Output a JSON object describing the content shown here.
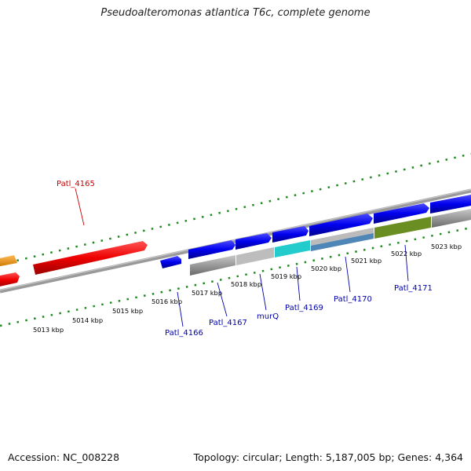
{
  "title": "Pseudoalteromonas atlantica T6c, complete genome",
  "footer": {
    "accession": "Accession: NC_008228",
    "summary": "Topology: circular; Length: 5,187,005 bp; Genes: 4,364"
  },
  "colors": {
    "backbone": "#8a8a8a",
    "tick": "#1f8a1f",
    "gene_blue": "#0000ee",
    "gene_red": "#ee0000",
    "gene_orange": "#ff9900",
    "label_blue": "#0000aa",
    "label_red": "#cc0000"
  },
  "kbp_labels": [
    "5013 kbp",
    "5014 kbp",
    "5015 kbp",
    "5016 kbp",
    "5017 kbp",
    "5018 kbp",
    "5019 kbp",
    "5020 kbp",
    "5021 kbp",
    "5022 kbp",
    "5023 kbp"
  ],
  "gene_labels": [
    {
      "text": "Patl_4165",
      "color": "#cc0000"
    },
    {
      "text": "Patl_4166",
      "color": "#0000aa"
    },
    {
      "text": "Patl_4167",
      "color": "#0000aa"
    },
    {
      "text": "murQ",
      "color": "#0000aa"
    },
    {
      "text": "Patl_4169",
      "color": "#0000aa"
    },
    {
      "text": "Patl_4170",
      "color": "#0000aa"
    },
    {
      "text": "Patl_4171",
      "color": "#0000aa"
    }
  ]
}
